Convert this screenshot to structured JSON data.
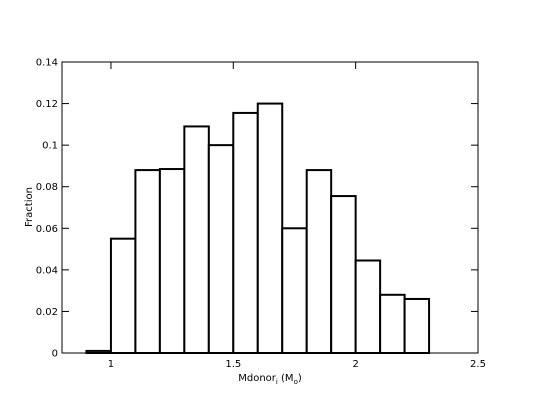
{
  "chart_data": {
    "type": "histogram",
    "ylabel": "Fraction",
    "xlabel_parts": [
      "Mdonor",
      "i",
      " (M",
      "o",
      ")"
    ],
    "bins": [
      0.9,
      1.0,
      1.1,
      1.2,
      1.3,
      1.4,
      1.5,
      1.6,
      1.7,
      1.8,
      1.9,
      2.0,
      2.1,
      2.2,
      2.3
    ],
    "values": [
      0.001,
      0.055,
      0.088,
      0.0885,
      0.109,
      0.1,
      0.1155,
      0.12,
      0.06,
      0.088,
      0.0755,
      0.0445,
      0.028,
      0.026
    ],
    "color": "#ffffff",
    "edgecolor": "#000000",
    "xlim": [
      0.8,
      2.5
    ],
    "xticks": [
      1,
      1.5,
      2,
      2.5
    ],
    "ylim": [
      0,
      0.14
    ],
    "yticks": [
      0,
      0.02,
      0.04,
      0.06,
      0.08,
      0.1,
      0.12,
      0.14
    ]
  }
}
